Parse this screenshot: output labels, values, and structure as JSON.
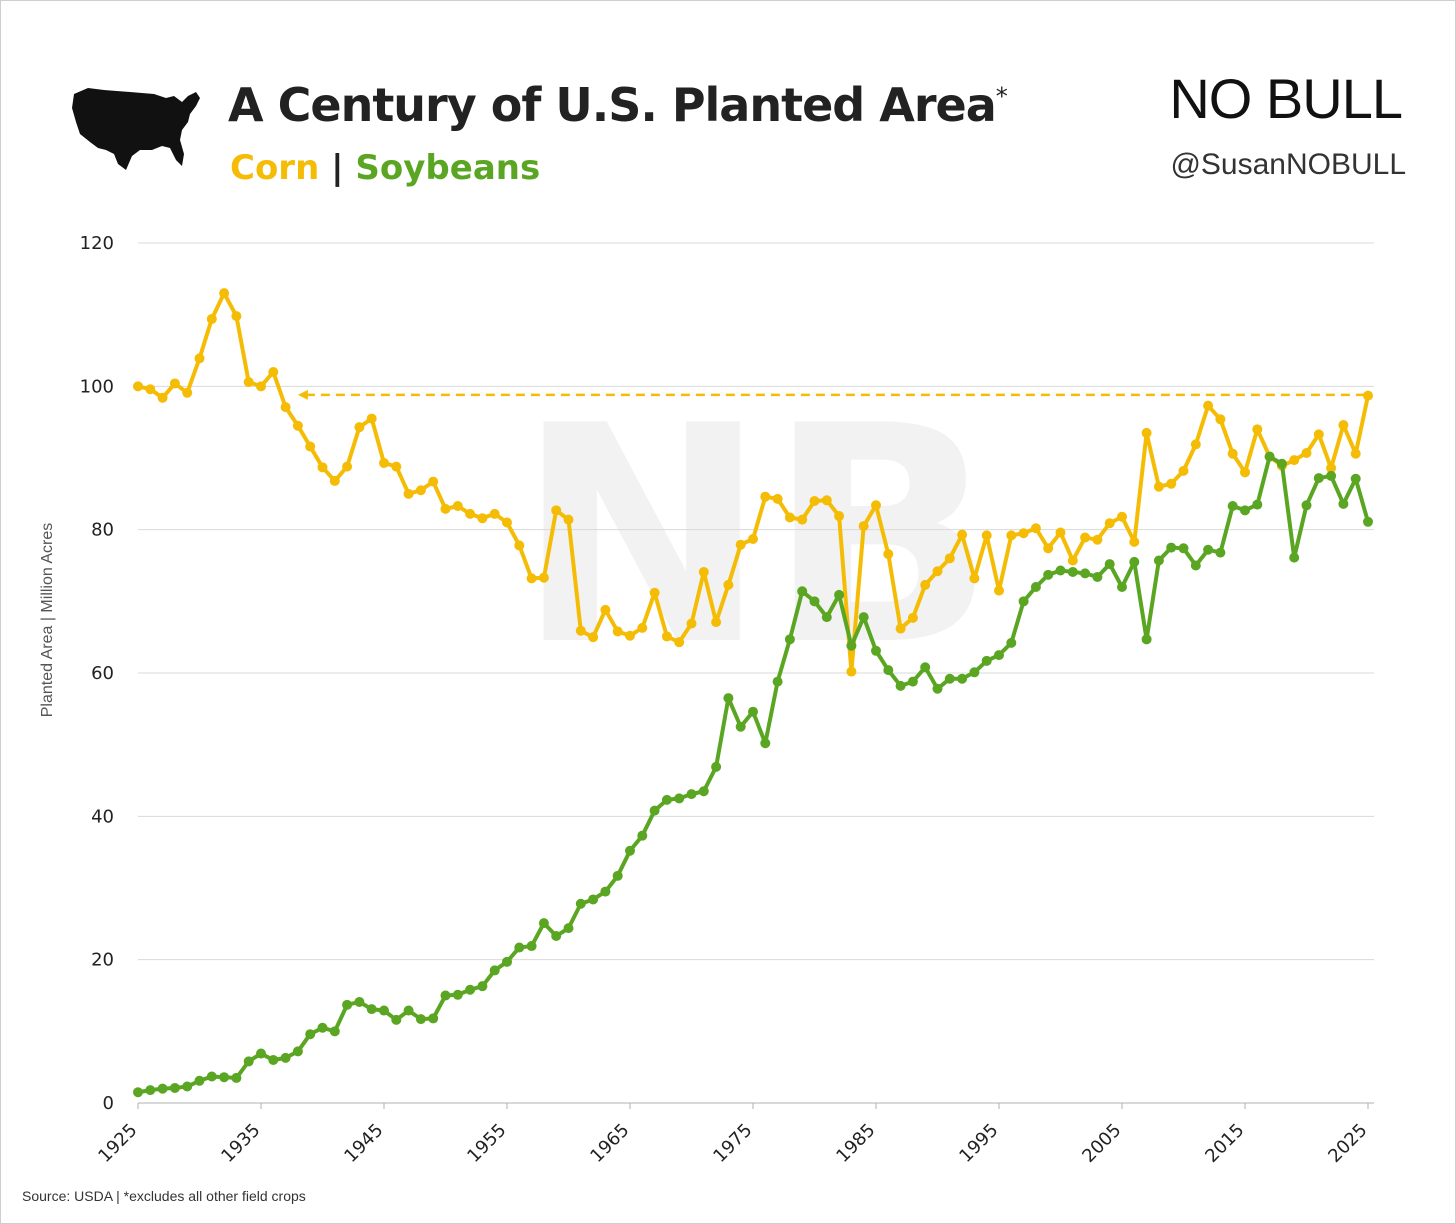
{
  "header": {
    "title": "A Century of U.S. Planted Area",
    "title_mark": "*",
    "subtitle_corn": "Corn",
    "subtitle_sep": "|",
    "subtitle_soy": "Soybeans",
    "logo_text": "NO BULL",
    "handle": "@SusanNOBULL"
  },
  "footer": {
    "source": "Source: USDA | *excludes all other field crops"
  },
  "colors": {
    "corn": "#f5bc06",
    "soybeans": "#5aa623",
    "grid": "#d9d9d9"
  },
  "icons": {
    "map": "us-map-icon",
    "watermark": "nobull-watermark"
  },
  "chart_data": {
    "type": "line",
    "title": "A Century of U.S. Planted Area",
    "xlabel": "",
    "ylabel": "Planted Area | Million Acres",
    "xlim": [
      1925,
      2025
    ],
    "ylim": [
      0,
      120
    ],
    "yticks": [
      0,
      20,
      40,
      60,
      80,
      100,
      120
    ],
    "xticks": [
      1925,
      1935,
      1945,
      1955,
      1965,
      1975,
      1985,
      1995,
      2005,
      2015,
      2025
    ],
    "grid": true,
    "legend": "subtitle",
    "reference_line": {
      "series": "Corn",
      "value": 98.8,
      "from_x": 1938,
      "to_x": 2025,
      "style": "dashed-arrow"
    },
    "x": [
      1925,
      1926,
      1927,
      1928,
      1929,
      1930,
      1931,
      1932,
      1933,
      1934,
      1935,
      1936,
      1937,
      1938,
      1939,
      1940,
      1941,
      1942,
      1943,
      1944,
      1945,
      1946,
      1947,
      1948,
      1949,
      1950,
      1951,
      1952,
      1953,
      1954,
      1955,
      1956,
      1957,
      1958,
      1959,
      1960,
      1961,
      1962,
      1963,
      1964,
      1965,
      1966,
      1967,
      1968,
      1969,
      1970,
      1971,
      1972,
      1973,
      1974,
      1975,
      1976,
      1977,
      1978,
      1979,
      1980,
      1981,
      1982,
      1983,
      1984,
      1985,
      1986,
      1987,
      1988,
      1989,
      1990,
      1991,
      1992,
      1993,
      1994,
      1995,
      1996,
      1997,
      1998,
      1999,
      2000,
      2001,
      2002,
      2003,
      2004,
      2005,
      2006,
      2007,
      2008,
      2009,
      2010,
      2011,
      2012,
      2013,
      2014,
      2015,
      2016,
      2017,
      2018,
      2019,
      2020,
      2021,
      2022,
      2023,
      2024,
      2025
    ],
    "series": [
      {
        "name": "Corn",
        "color": "#f5bc06",
        "values": [
          100.0,
          99.6,
          98.4,
          100.4,
          99.1,
          103.9,
          109.4,
          113.0,
          109.8,
          100.6,
          100.0,
          102.0,
          97.1,
          94.5,
          91.6,
          88.7,
          86.8,
          88.8,
          94.3,
          95.5,
          89.3,
          88.8,
          85.0,
          85.5,
          86.7,
          82.9,
          83.3,
          82.2,
          81.6,
          82.2,
          81.0,
          77.8,
          73.2,
          73.3,
          82.7,
          81.4,
          65.9,
          65.0,
          68.8,
          65.8,
          65.2,
          66.3,
          71.2,
          65.1,
          64.3,
          66.9,
          74.1,
          67.1,
          72.3,
          77.9,
          78.7,
          84.6,
          84.3,
          81.7,
          81.4,
          84.0,
          84.1,
          81.9,
          60.2,
          80.5,
          83.4,
          76.6,
          66.2,
          67.7,
          72.3,
          74.2,
          76.0,
          79.3,
          73.2,
          79.2,
          71.5,
          79.2,
          79.5,
          80.2,
          77.4,
          79.6,
          75.7,
          78.9,
          78.6,
          80.9,
          81.8,
          78.3,
          93.5,
          86.0,
          86.4,
          88.2,
          91.9,
          97.3,
          95.4,
          90.6,
          88.0,
          94.0,
          90.2,
          88.9,
          89.7,
          90.7,
          93.3,
          88.6,
          94.6,
          90.6,
          98.7
        ]
      },
      {
        "name": "Soybeans",
        "color": "#5aa623",
        "values": [
          1.5,
          1.8,
          2.0,
          2.1,
          2.3,
          3.1,
          3.7,
          3.6,
          3.5,
          5.8,
          6.9,
          6.0,
          6.3,
          7.2,
          9.6,
          10.5,
          10.0,
          13.7,
          14.1,
          13.1,
          12.9,
          11.6,
          12.9,
          11.7,
          11.8,
          15.0,
          15.1,
          15.8,
          16.3,
          18.5,
          19.7,
          21.7,
          21.9,
          25.1,
          23.3,
          24.4,
          27.8,
          28.4,
          29.5,
          31.7,
          35.2,
          37.3,
          40.8,
          42.3,
          42.5,
          43.1,
          43.5,
          46.9,
          56.5,
          52.5,
          54.6,
          50.2,
          58.8,
          64.7,
          71.4,
          70.0,
          67.8,
          70.9,
          63.8,
          67.8,
          63.1,
          60.4,
          58.2,
          58.8,
          60.8,
          57.8,
          59.2,
          59.2,
          60.1,
          61.7,
          62.5,
          64.2,
          70.0,
          72.0,
          73.7,
          74.3,
          74.1,
          73.9,
          73.4,
          75.2,
          72.0,
          75.5,
          64.7,
          75.7,
          77.5,
          77.4,
          75.0,
          77.2,
          76.8,
          83.3,
          82.7,
          83.5,
          90.2,
          89.2,
          76.1,
          83.4,
          87.2,
          87.5,
          83.6,
          87.1,
          81.1
        ]
      }
    ]
  }
}
